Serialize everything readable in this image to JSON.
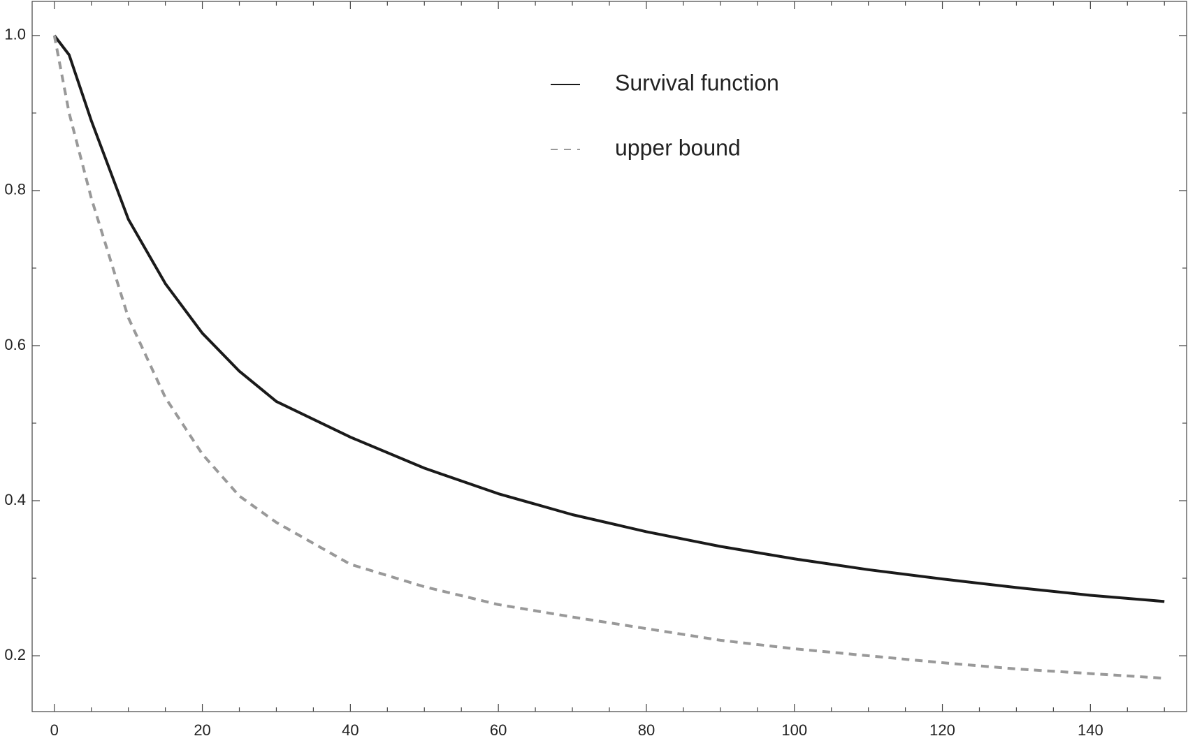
{
  "chart_data": {
    "type": "line",
    "x": [
      0,
      2,
      5,
      10,
      15,
      20,
      25,
      30,
      40,
      50,
      60,
      70,
      80,
      90,
      100,
      110,
      120,
      130,
      140,
      150
    ],
    "series": [
      {
        "name": "Survival function",
        "color": "#1a1a1a",
        "dash": false,
        "values": [
          1.0,
          0.975,
          0.89,
          0.763,
          0.68,
          0.616,
          0.567,
          0.528,
          0.482,
          0.442,
          0.409,
          0.382,
          0.36,
          0.341,
          0.325,
          0.311,
          0.299,
          0.288,
          0.278,
          0.27
        ]
      },
      {
        "name": "upper bound",
        "color": "#999999",
        "dash": true,
        "values": [
          1.0,
          0.9,
          0.79,
          0.636,
          0.533,
          0.46,
          0.406,
          0.372,
          0.318,
          0.289,
          0.266,
          0.25,
          0.235,
          0.22,
          0.209,
          0.2,
          0.191,
          0.183,
          0.177,
          0.171
        ]
      }
    ],
    "xlim": [
      -3,
      153
    ],
    "ylim": [
      0.128,
      1.044
    ],
    "xticks": [
      0,
      20,
      40,
      60,
      80,
      100,
      120,
      140
    ],
    "yticks": [
      0.2,
      0.4,
      0.6,
      0.8,
      {
        "value": 1,
        "label": "1.0"
      }
    ],
    "xminorticks": [
      5,
      10,
      15,
      25,
      30,
      35,
      45,
      50,
      55,
      65,
      70,
      75,
      85,
      90,
      95,
      105,
      110,
      115,
      125,
      130,
      135,
      145,
      150
    ],
    "yminorticks": [
      0.3,
      0.5,
      0.7,
      0.9
    ],
    "legend": "top-center",
    "grid": false
  }
}
